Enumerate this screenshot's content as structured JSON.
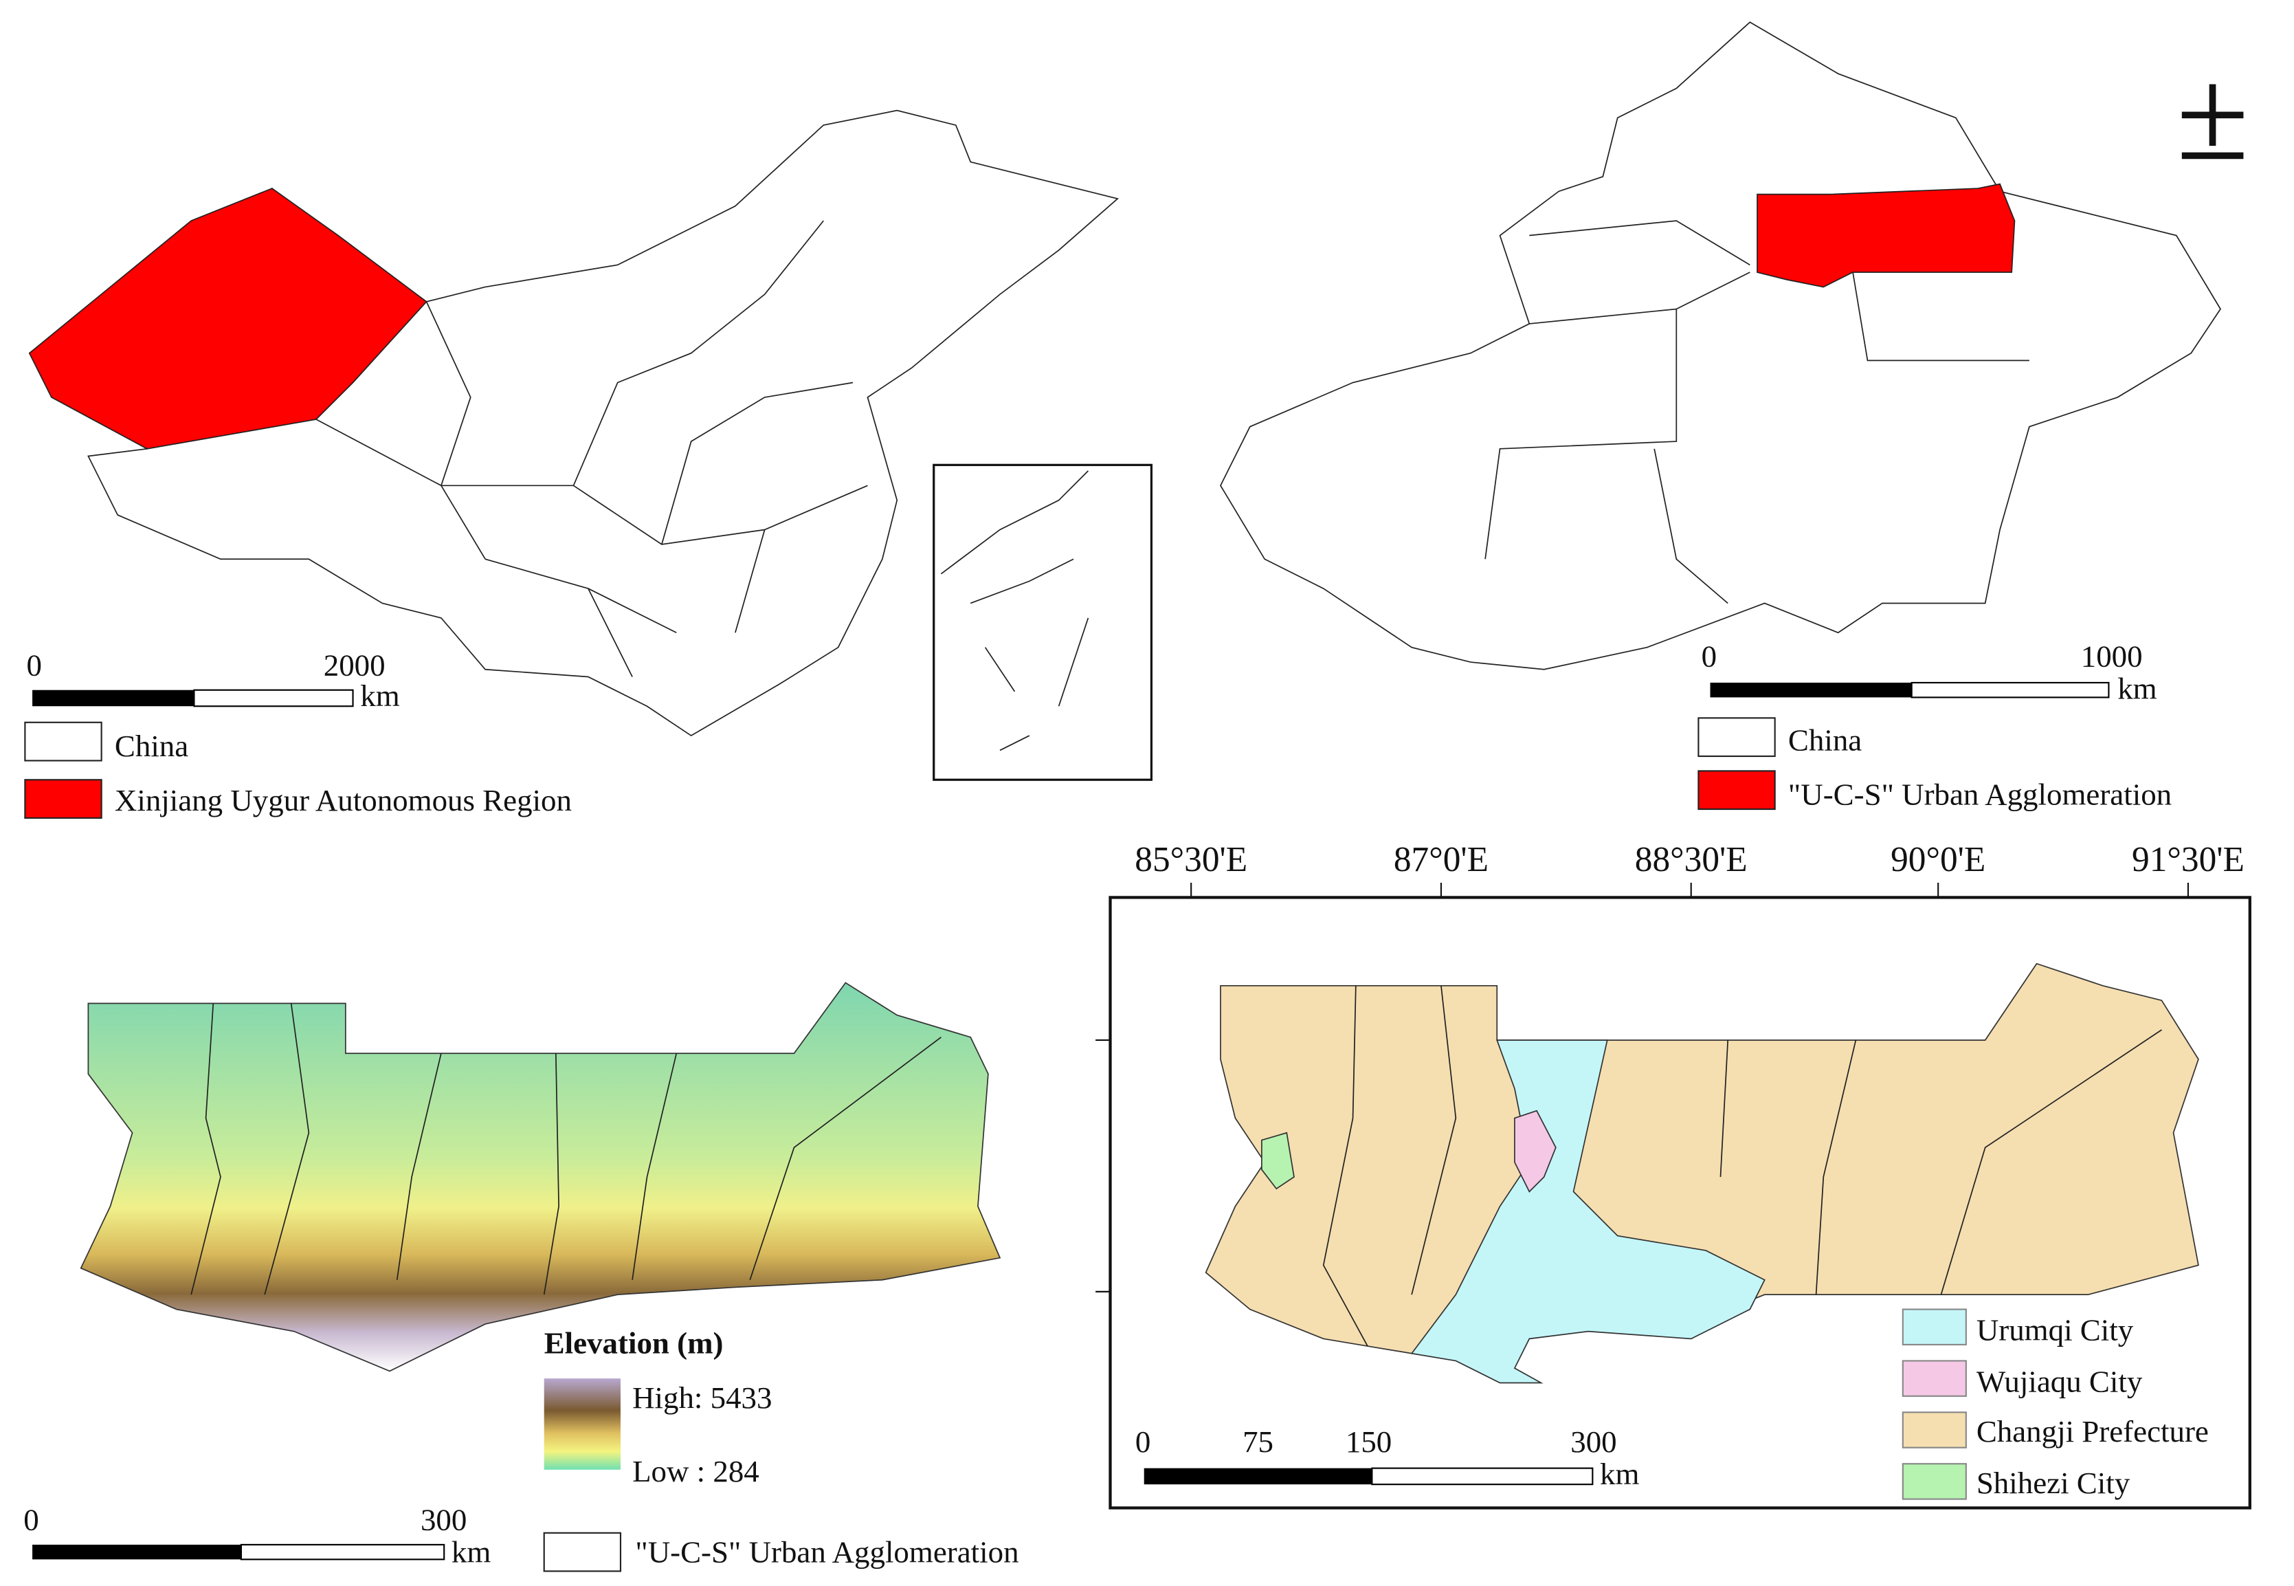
{
  "map_china": {
    "scale_bar": {
      "labels": [
        "0",
        "2000"
      ],
      "unit": "km"
    },
    "legend": [
      {
        "label": "China",
        "color": "#ffffff"
      },
      {
        "label": "Xinjiang Uygur Autonomous Region",
        "color": "#ff0000"
      }
    ]
  },
  "map_xinjiang": {
    "north_arrow": "±",
    "scale_bar": {
      "labels": [
        "0",
        "1000"
      ],
      "unit": "km"
    },
    "legend": [
      {
        "label": "China",
        "color": "#ffffff"
      },
      {
        "label": "\"U-C-S\" Urban Agglomeration",
        "color": "#ff0000"
      }
    ]
  },
  "map_elevation": {
    "legend_title": "Elevation (m)",
    "high_label": "High: 5433",
    "low_label": "Low : 284",
    "scale_bar": {
      "labels": [
        "0",
        "300"
      ],
      "unit": "km"
    },
    "legend": [
      {
        "label": "\"U-C-S\" Urban Agglomeration",
        "color": "#ffffff"
      }
    ]
  },
  "map_cities": {
    "longitude_labels": [
      "85°30'E",
      "87°0'E",
      "88°30'E",
      "90°0'E",
      "91°30'E"
    ],
    "scale_bar": {
      "labels": [
        "0",
        "75",
        "150",
        "300"
      ],
      "unit": "km"
    },
    "legend": [
      {
        "label": "Urumqi City",
        "color": "#c4f6f8"
      },
      {
        "label": "Wujiaqu City",
        "color": "#f5c8e6"
      },
      {
        "label": "Changji Prefecture",
        "color": "#f5deb0"
      },
      {
        "label": "Shihezi City",
        "color": "#b6f2b0"
      }
    ]
  }
}
